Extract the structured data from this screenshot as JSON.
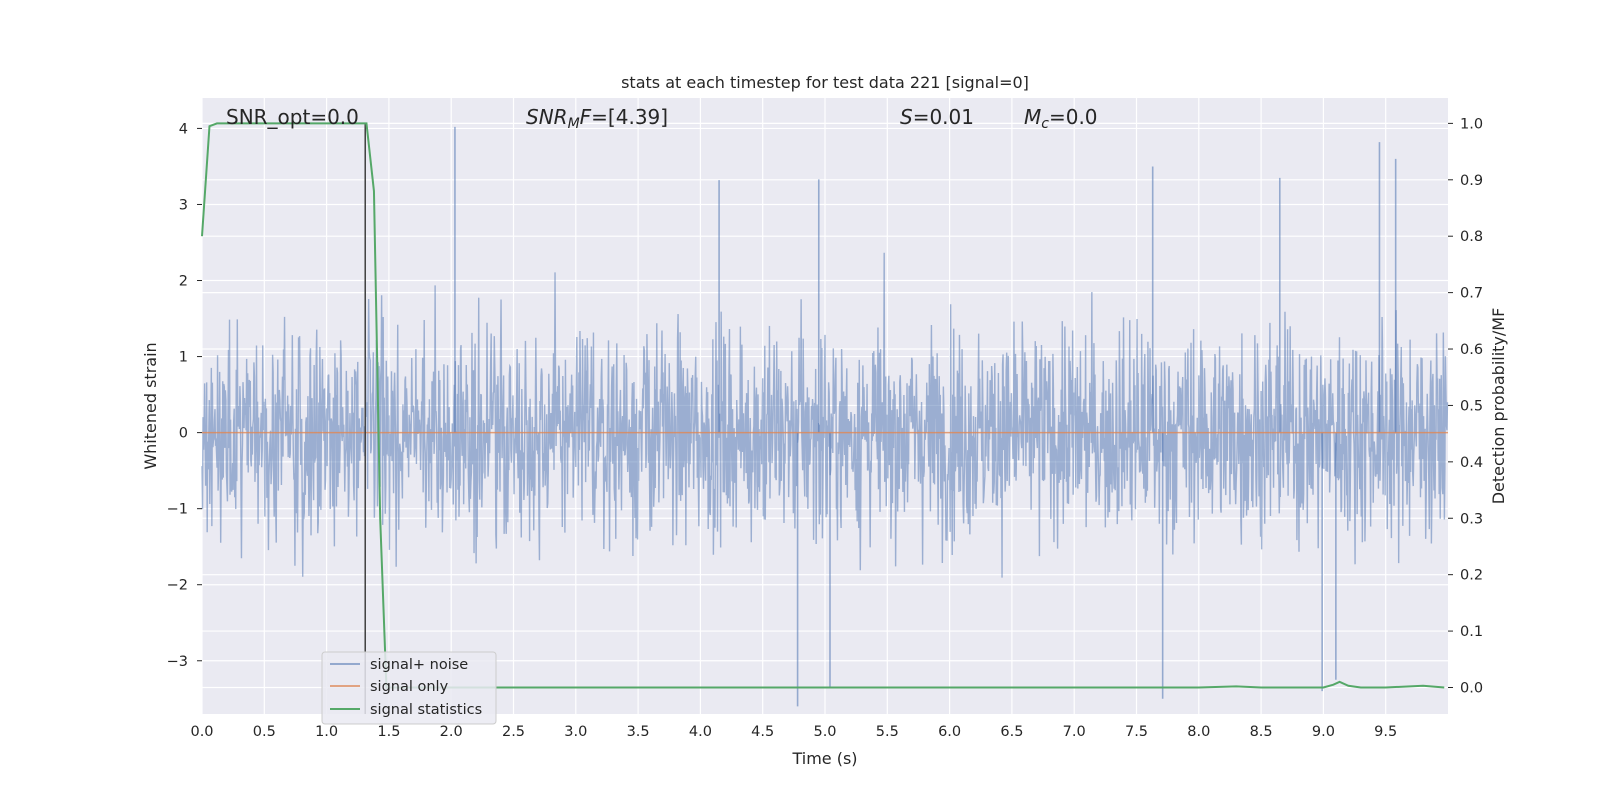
{
  "chart_data": {
    "type": "line",
    "title": "stats at each timestep for test data 221 [signal=0]",
    "xlabel": "Time (s)",
    "ylabel": "Whitened strain",
    "y2label": "Detection probability/MF",
    "xlim": [
      0.0,
      10.0
    ],
    "ylim": [
      -3.7,
      4.4
    ],
    "y2lim": [
      -0.047,
      1.045
    ],
    "x_ticks": [
      "0.0",
      "0.5",
      "1.0",
      "1.5",
      "2.0",
      "2.5",
      "3.0",
      "3.5",
      "4.0",
      "4.5",
      "5.0",
      "5.5",
      "6.0",
      "6.5",
      "7.0",
      "7.5",
      "8.0",
      "8.5",
      "9.0",
      "9.5"
    ],
    "y_ticks": [
      "−3",
      "−2",
      "−1",
      "0",
      "1",
      "2",
      "3",
      "4"
    ],
    "y2_ticks": [
      "0.0",
      "0.1",
      "0.2",
      "0.3",
      "0.4",
      "0.5",
      "0.6",
      "0.7",
      "0.8",
      "0.9",
      "1.0"
    ],
    "grid": true,
    "legend_position": "lower-left",
    "annotations": {
      "snr_opt": "SNR_opt=0.0",
      "snr_mf": "=[4.39]",
      "snr_mf_symbol": "SNR",
      "snr_mf_sub": "M",
      "snr_mf_tail": "F",
      "s_symbol": "S",
      "s_value": "=0.01",
      "mc_symbol": "M",
      "mc_sub": "c",
      "mc_value": "=0.0"
    },
    "vline_x": 1.31,
    "series": [
      {
        "name": "signal+ noise",
        "color": "#4c72b0",
        "axis": "left",
        "description_type": "noise",
        "envelope_typical": [
          -1.6,
          1.6
        ],
        "peaks": [
          {
            "x": 2.03,
            "y": 4.02
          },
          {
            "x": 4.15,
            "y": 3.32
          },
          {
            "x": 4.95,
            "y": 3.33
          },
          {
            "x": 7.63,
            "y": 3.5
          },
          {
            "x": 9.45,
            "y": 3.82
          },
          {
            "x": 9.58,
            "y": 3.6
          },
          {
            "x": 8.65,
            "y": 3.35
          },
          {
            "x": 4.78,
            "y": -3.6
          },
          {
            "x": 5.04,
            "y": -3.35
          },
          {
            "x": 7.71,
            "y": -3.5
          },
          {
            "x": 8.99,
            "y": -3.4
          },
          {
            "x": 9.1,
            "y": -3.25
          }
        ]
      },
      {
        "name": "signal only",
        "color": "#dd8452",
        "axis": "left",
        "x": [
          0.0,
          10.0
        ],
        "y": [
          0.0,
          0.0
        ]
      },
      {
        "name": "signal statistics",
        "color": "#55a868",
        "axis": "right",
        "x": [
          0.0,
          0.06,
          0.12,
          0.2,
          0.5,
          0.8,
          1.0,
          1.2,
          1.3,
          1.32,
          1.38,
          1.43,
          1.48,
          1.6,
          2.0,
          4.0,
          6.0,
          8.0,
          8.3,
          8.5,
          9.0,
          9.08,
          9.13,
          9.2,
          9.3,
          9.5,
          9.8,
          9.97
        ],
        "y": [
          0.8,
          0.995,
          1.0,
          1.0,
          1.0,
          1.0,
          1.0,
          1.0,
          1.0,
          1.0,
          0.88,
          0.3,
          0.0,
          0.0,
          0.0,
          0.0,
          0.0,
          0.0,
          0.002,
          0.0,
          0.0,
          0.005,
          0.01,
          0.003,
          0.0,
          0.0,
          0.003,
          0.0
        ]
      }
    ]
  }
}
